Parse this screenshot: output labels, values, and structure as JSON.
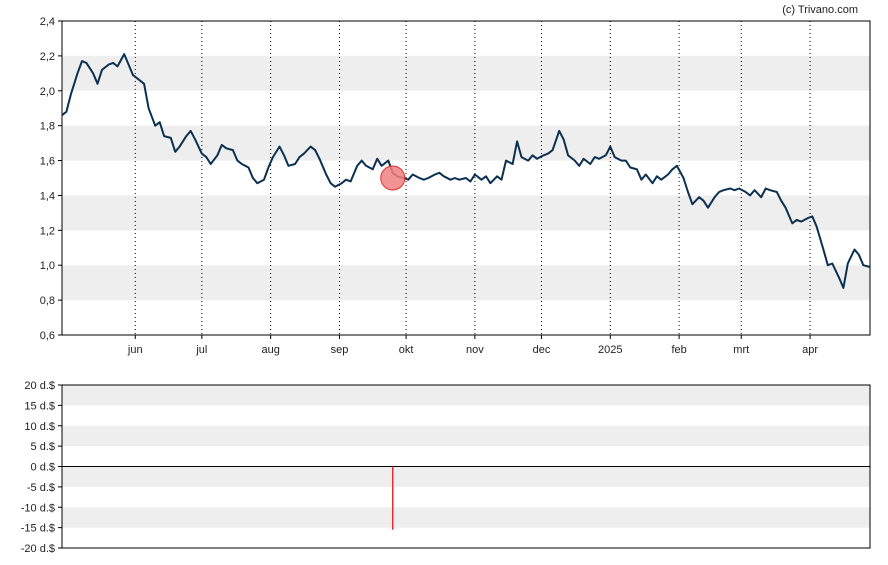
{
  "credit": "(c) Trivano.com",
  "colors": {
    "line": "#0b3050",
    "band": "#eeeeee",
    "marker_fill": "#f08080",
    "marker_stroke": "#e03030",
    "signal": "#e03030",
    "axis": "#000000"
  },
  "chart_data": [
    {
      "type": "line",
      "name": "price",
      "grid": "horizontal bands, dotted vertical month lines",
      "x_type": "date",
      "xlim": [
        "2024-04-29",
        "2025-04-28"
      ],
      "ylim": [
        0.6,
        2.4
      ],
      "yticks": [
        "0,6",
        "0,8",
        "1,0",
        "1,2",
        "1,4",
        "1,6",
        "1,8",
        "2,0",
        "2,2",
        "2,4"
      ],
      "xticks": [
        {
          "label": "jun",
          "date": "2024-06-01"
        },
        {
          "label": "jul",
          "date": "2024-07-01"
        },
        {
          "label": "aug",
          "date": "2024-08-01"
        },
        {
          "label": "sep",
          "date": "2024-09-01"
        },
        {
          "label": "okt",
          "date": "2024-10-01"
        },
        {
          "label": "nov",
          "date": "2024-11-01"
        },
        {
          "label": "dec",
          "date": "2024-12-01"
        },
        {
          "label": "2025",
          "date": "2025-01-01"
        },
        {
          "label": "feb",
          "date": "2025-02-01"
        },
        {
          "label": "mrt",
          "date": "2025-03-01"
        },
        {
          "label": "apr",
          "date": "2025-04-01"
        }
      ],
      "points": [
        [
          "2024-04-29",
          1.86
        ],
        [
          "2024-05-01",
          1.88
        ],
        [
          "2024-05-03",
          1.98
        ],
        [
          "2024-05-06",
          2.1
        ],
        [
          "2024-05-08",
          2.17
        ],
        [
          "2024-05-10",
          2.16
        ],
        [
          "2024-05-13",
          2.1
        ],
        [
          "2024-05-15",
          2.04
        ],
        [
          "2024-05-17",
          2.12
        ],
        [
          "2024-05-20",
          2.15
        ],
        [
          "2024-05-22",
          2.16
        ],
        [
          "2024-05-24",
          2.14
        ],
        [
          "2024-05-27",
          2.21
        ],
        [
          "2024-05-29",
          2.15
        ],
        [
          "2024-05-31",
          2.09
        ],
        [
          "2024-06-03",
          2.06
        ],
        [
          "2024-06-05",
          2.04
        ],
        [
          "2024-06-07",
          1.9
        ],
        [
          "2024-06-10",
          1.8
        ],
        [
          "2024-06-12",
          1.82
        ],
        [
          "2024-06-14",
          1.74
        ],
        [
          "2024-06-17",
          1.73
        ],
        [
          "2024-06-19",
          1.65
        ],
        [
          "2024-06-21",
          1.68
        ],
        [
          "2024-06-24",
          1.74
        ],
        [
          "2024-06-26",
          1.77
        ],
        [
          "2024-06-28",
          1.72
        ],
        [
          "2024-07-01",
          1.64
        ],
        [
          "2024-07-03",
          1.62
        ],
        [
          "2024-07-05",
          1.58
        ],
        [
          "2024-07-08",
          1.63
        ],
        [
          "2024-07-10",
          1.69
        ],
        [
          "2024-07-12",
          1.67
        ],
        [
          "2024-07-15",
          1.66
        ],
        [
          "2024-07-17",
          1.6
        ],
        [
          "2024-07-19",
          1.58
        ],
        [
          "2024-07-22",
          1.56
        ],
        [
          "2024-07-24",
          1.5
        ],
        [
          "2024-07-26",
          1.47
        ],
        [
          "2024-07-29",
          1.49
        ],
        [
          "2024-07-31",
          1.56
        ],
        [
          "2024-08-02",
          1.62
        ],
        [
          "2024-08-05",
          1.68
        ],
        [
          "2024-08-07",
          1.63
        ],
        [
          "2024-08-09",
          1.57
        ],
        [
          "2024-08-12",
          1.58
        ],
        [
          "2024-08-14",
          1.62
        ],
        [
          "2024-08-16",
          1.64
        ],
        [
          "2024-08-19",
          1.68
        ],
        [
          "2024-08-21",
          1.66
        ],
        [
          "2024-08-23",
          1.61
        ],
        [
          "2024-08-26",
          1.52
        ],
        [
          "2024-08-28",
          1.47
        ],
        [
          "2024-08-30",
          1.45
        ],
        [
          "2024-09-02",
          1.47
        ],
        [
          "2024-09-04",
          1.49
        ],
        [
          "2024-09-06",
          1.48
        ],
        [
          "2024-09-09",
          1.57
        ],
        [
          "2024-09-11",
          1.6
        ],
        [
          "2024-09-13",
          1.57
        ],
        [
          "2024-09-16",
          1.55
        ],
        [
          "2024-09-18",
          1.61
        ],
        [
          "2024-09-20",
          1.57
        ],
        [
          "2024-09-23",
          1.6
        ],
        [
          "2024-09-25",
          1.53
        ],
        [
          "2024-09-27",
          1.51
        ],
        [
          "2024-09-30",
          1.5
        ],
        [
          "2024-10-02",
          1.49
        ],
        [
          "2024-10-04",
          1.52
        ],
        [
          "2024-10-07",
          1.5
        ],
        [
          "2024-10-09",
          1.49
        ],
        [
          "2024-10-11",
          1.5
        ],
        [
          "2024-10-14",
          1.52
        ],
        [
          "2024-10-16",
          1.53
        ],
        [
          "2024-10-18",
          1.51
        ],
        [
          "2024-10-21",
          1.49
        ],
        [
          "2024-10-23",
          1.5
        ],
        [
          "2024-10-25",
          1.49
        ],
        [
          "2024-10-28",
          1.5
        ],
        [
          "2024-10-30",
          1.48
        ],
        [
          "2024-11-01",
          1.52
        ],
        [
          "2024-11-04",
          1.49
        ],
        [
          "2024-11-06",
          1.51
        ],
        [
          "2024-11-08",
          1.47
        ],
        [
          "2024-11-11",
          1.51
        ],
        [
          "2024-11-13",
          1.49
        ],
        [
          "2024-11-15",
          1.6
        ],
        [
          "2024-11-18",
          1.58
        ],
        [
          "2024-11-20",
          1.71
        ],
        [
          "2024-11-22",
          1.62
        ],
        [
          "2024-11-25",
          1.6
        ],
        [
          "2024-11-27",
          1.63
        ],
        [
          "2024-11-29",
          1.61
        ],
        [
          "2024-12-02",
          1.63
        ],
        [
          "2024-12-04",
          1.64
        ],
        [
          "2024-12-06",
          1.66
        ],
        [
          "2024-12-09",
          1.77
        ],
        [
          "2024-12-11",
          1.72
        ],
        [
          "2024-12-13",
          1.63
        ],
        [
          "2024-12-16",
          1.6
        ],
        [
          "2024-12-18",
          1.57
        ],
        [
          "2024-12-20",
          1.61
        ],
        [
          "2024-12-23",
          1.58
        ],
        [
          "2024-12-25",
          1.62
        ],
        [
          "2024-12-27",
          1.61
        ],
        [
          "2024-12-30",
          1.63
        ],
        [
          "2025-01-01",
          1.68
        ],
        [
          "2025-01-03",
          1.62
        ],
        [
          "2025-01-06",
          1.6
        ],
        [
          "2025-01-08",
          1.6
        ],
        [
          "2025-01-10",
          1.56
        ],
        [
          "2025-01-13",
          1.55
        ],
        [
          "2025-01-15",
          1.49
        ],
        [
          "2025-01-17",
          1.52
        ],
        [
          "2025-01-20",
          1.47
        ],
        [
          "2025-01-22",
          1.51
        ],
        [
          "2025-01-24",
          1.49
        ],
        [
          "2025-01-27",
          1.52
        ],
        [
          "2025-01-29",
          1.55
        ],
        [
          "2025-01-31",
          1.57
        ],
        [
          "2025-02-03",
          1.5
        ],
        [
          "2025-02-05",
          1.42
        ],
        [
          "2025-02-07",
          1.35
        ],
        [
          "2025-02-10",
          1.39
        ],
        [
          "2025-02-12",
          1.37
        ],
        [
          "2025-02-14",
          1.33
        ],
        [
          "2025-02-17",
          1.39
        ],
        [
          "2025-02-19",
          1.42
        ],
        [
          "2025-02-21",
          1.43
        ],
        [
          "2025-02-24",
          1.44
        ],
        [
          "2025-02-26",
          1.43
        ],
        [
          "2025-02-28",
          1.44
        ],
        [
          "2025-03-03",
          1.42
        ],
        [
          "2025-03-05",
          1.4
        ],
        [
          "2025-03-07",
          1.43
        ],
        [
          "2025-03-10",
          1.39
        ],
        [
          "2025-03-12",
          1.44
        ],
        [
          "2025-03-14",
          1.43
        ],
        [
          "2025-03-17",
          1.42
        ],
        [
          "2025-03-19",
          1.37
        ],
        [
          "2025-03-21",
          1.33
        ],
        [
          "2025-03-24",
          1.24
        ],
        [
          "2025-03-26",
          1.26
        ],
        [
          "2025-03-28",
          1.25
        ],
        [
          "2025-03-31",
          1.27
        ],
        [
          "2025-04-02",
          1.28
        ],
        [
          "2025-04-04",
          1.22
        ],
        [
          "2025-04-07",
          1.09
        ],
        [
          "2025-04-09",
          1.0
        ],
        [
          "2025-04-11",
          1.01
        ],
        [
          "2025-04-14",
          0.93
        ],
        [
          "2025-04-16",
          0.87
        ],
        [
          "2025-04-18",
          1.01
        ],
        [
          "2025-04-21",
          1.09
        ],
        [
          "2025-04-23",
          1.06
        ],
        [
          "2025-04-25",
          1.0
        ],
        [
          "2025-04-28",
          0.99
        ]
      ],
      "markers": [
        {
          "date": "2024-09-25",
          "value": 1.5
        }
      ]
    },
    {
      "type": "bar",
      "name": "dividend",
      "grid": "horizontal bands",
      "x_type": "date",
      "xlim": [
        "2024-04-29",
        "2025-04-28"
      ],
      "ylim": [
        -20,
        20
      ],
      "yticks": [
        "-20 d.$",
        "-15 d.$",
        "-10 d.$",
        "-5 d.$",
        "0 d.$",
        "5 d.$",
        "10 d.$",
        "15 d.$",
        "20 d.$"
      ],
      "points": [
        [
          "2024-09-25",
          -15.5
        ]
      ]
    }
  ]
}
